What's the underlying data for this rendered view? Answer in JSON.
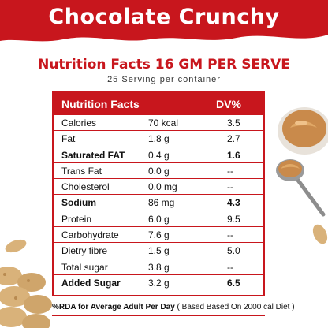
{
  "product_title": "Chocolate Crunchy",
  "nutrition_heading": "Nutrition Facts 16 GM PER SERVE",
  "servings_text": "25 Serving per container",
  "table": {
    "col_nutrition": "Nutrition  Facts",
    "col_dv": "DV%",
    "rows": [
      {
        "name": "Calories",
        "amount": "70 kcal",
        "dv": "3.5",
        "bold": false
      },
      {
        "name": "Fat",
        "amount": "1.8 g",
        "dv": "2.7",
        "bold": false
      },
      {
        "name": "Saturated FAT",
        "amount": "0.4 g",
        "dv": "1.6",
        "bold": true
      },
      {
        "name": "Trans Fat",
        "amount": "0.0 g",
        "dv": "--",
        "bold": false
      },
      {
        "name": "Cholesterol",
        "amount": "0.0 mg",
        "dv": "--",
        "bold": false
      },
      {
        "name": "Sodium",
        "amount": "86 mg",
        "dv": "4.3",
        "bold": true
      },
      {
        "name": "Protein",
        "amount": "6.0 g",
        "dv": "9.5",
        "bold": false
      },
      {
        "name": "Carbohydrate",
        "amount": "7.6 g",
        "dv": "--",
        "bold": false
      },
      {
        "name": "Dietry fibre",
        "amount": "1.5 g",
        "dv": "5.0",
        "bold": false
      },
      {
        "name": "Total sugar",
        "amount": "3.8 g",
        "dv": "--",
        "bold": false
      },
      {
        "name": "Added Sugar",
        "amount": "3.2 g",
        "dv": "6.5",
        "bold": true
      }
    ]
  },
  "footer": {
    "bold_part": "%RDA for Average Adult Per Day",
    "normal_part": " ( Based Based On 2000  cal Diet )"
  },
  "colors": {
    "brand_red": "#c8161d",
    "peanut_butter": "#c98a4b",
    "peanut_shell": "#d9b27a"
  }
}
